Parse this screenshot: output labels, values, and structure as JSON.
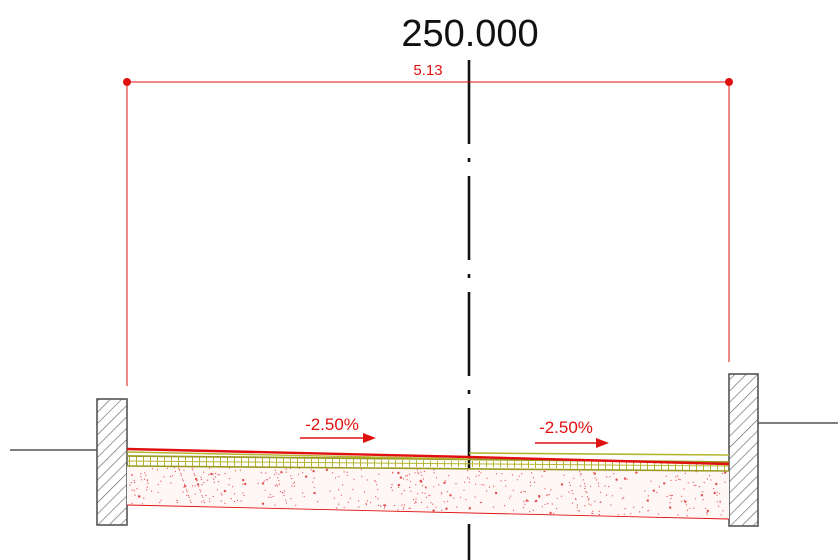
{
  "station": "250.000",
  "width_dimension": "5.13",
  "left_slope": "-2.50%",
  "right_slope": "-2.50%",
  "colors": {
    "dimension": "#e01010",
    "pavement_top": "#e01010",
    "base_course": "#9a9a20",
    "centerline": "#111111",
    "ground": "#555555"
  }
}
